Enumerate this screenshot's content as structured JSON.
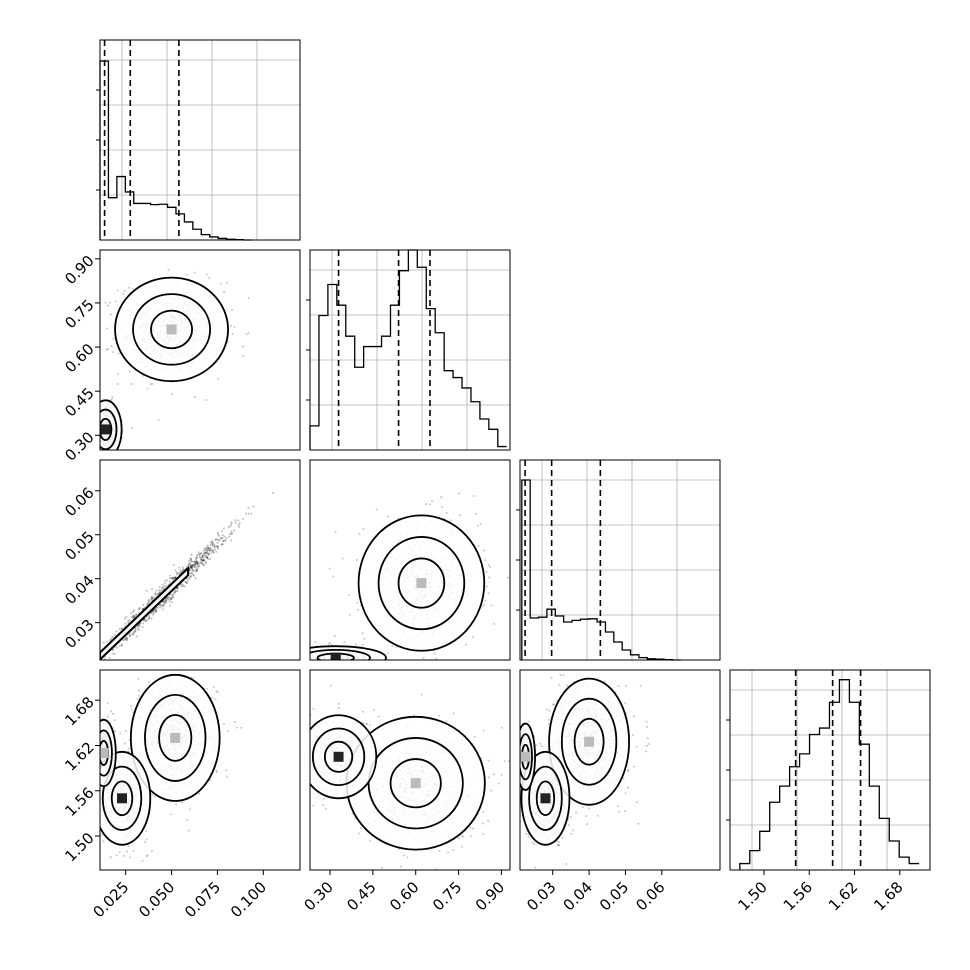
{
  "figure": {
    "background": "#ffffff",
    "grid_color": "#b0b0b0",
    "line_color": "#000000"
  },
  "chart_data": [
    {
      "type": "histogram",
      "panel": "diag-0",
      "x_range": [
        0.011,
        0.12
      ],
      "y_range": [
        0,
        0.052
      ],
      "grid": true,
      "x_bins": [
        0.011,
        0.0156,
        0.0202,
        0.0248,
        0.0294,
        0.034,
        0.0386,
        0.0432,
        0.0478,
        0.0524,
        0.057,
        0.0616,
        0.0662,
        0.0708,
        0.0754,
        0.08,
        0.0846,
        0.0892,
        0.0938
      ],
      "values": [
        0.0465,
        0.011,
        0.0165,
        0.0125,
        0.0095,
        0.0095,
        0.0092,
        0.0093,
        0.0085,
        0.0068,
        0.0047,
        0.0028,
        0.0014,
        0.0008,
        0.0004,
        0.0002,
        0.0001,
        0.0
      ],
      "quantiles": [
        0.0135,
        0.0275,
        0.054
      ]
    },
    {
      "type": "scatter_contour",
      "panel": "row1-col0",
      "x_range": [
        0.011,
        0.12
      ],
      "y_range": [
        0.25,
        0.93
      ],
      "y_ticks": [
        "0.30",
        "0.45",
        "0.60",
        "0.75",
        "0.90"
      ],
      "clusters": [
        {
          "x_center": 0.05,
          "y_center": 0.66,
          "x_sd": 0.014,
          "y_sd": 0.08
        },
        {
          "x_center": 0.014,
          "y_center": 0.32,
          "x_sd": 0.004,
          "y_sd": 0.045
        }
      ],
      "contour_x_centers": [
        0.047,
        0.046,
        0.045,
        0.03
      ],
      "contour_y_centers": [
        0.64,
        0.62,
        0.6,
        0.6
      ]
    },
    {
      "type": "histogram",
      "panel": "diag-1",
      "x_range": [
        0.23,
        0.93
      ],
      "y_range": [
        0,
        0.058
      ],
      "grid": true,
      "x_bins": [
        0.23,
        0.2613,
        0.2926,
        0.3239,
        0.3552,
        0.3865,
        0.4178,
        0.4491,
        0.4804,
        0.5117,
        0.543,
        0.5743,
        0.6056,
        0.6369,
        0.6682,
        0.6995,
        0.7308,
        0.7621,
        0.7934,
        0.8247,
        0.856,
        0.8873,
        0.9186
      ],
      "values": [
        0.007,
        0.039,
        0.048,
        0.042,
        0.033,
        0.024,
        0.03,
        0.03,
        0.033,
        0.042,
        0.052,
        0.058,
        0.053,
        0.041,
        0.034,
        0.023,
        0.021,
        0.018,
        0.014,
        0.009,
        0.006,
        0.001
      ],
      "quantiles": [
        0.33,
        0.54,
        0.65
      ]
    },
    {
      "type": "scatter_contour",
      "panel": "row2-col0",
      "x_range": [
        0.011,
        0.12
      ],
      "y_range": [
        0.0215,
        0.067
      ],
      "y_ticks": [
        "0.03",
        "0.04",
        "0.05",
        "0.06"
      ],
      "relation": "y = 0.4 x + 0.018"
    },
    {
      "type": "scatter_contour",
      "panel": "row2-col1",
      "x_range": [
        0.23,
        0.93
      ],
      "y_range": [
        0.0215,
        0.067
      ],
      "clusters": [
        {
          "x_center": 0.62,
          "y_center": 0.039,
          "x_sd": 0.1,
          "y_sd": 0.007
        },
        {
          "x_center": 0.32,
          "y_center": 0.022,
          "x_sd": 0.08,
          "y_sd": 0.0012
        }
      ]
    },
    {
      "type": "histogram",
      "panel": "diag-2",
      "x_range": [
        0.021,
        0.076
      ],
      "y_range": [
        0,
        0.05
      ],
      "grid": true,
      "x_bins": [
        0.0215,
        0.0238,
        0.0261,
        0.0284,
        0.0307,
        0.033,
        0.0353,
        0.0376,
        0.0399,
        0.0422,
        0.0445,
        0.0468,
        0.0491,
        0.0514,
        0.0537,
        0.056,
        0.0583,
        0.0606,
        0.0629,
        0.0652
      ],
      "values": [
        0.045,
        0.0105,
        0.0107,
        0.0127,
        0.011,
        0.0095,
        0.0099,
        0.0102,
        0.0103,
        0.0095,
        0.007,
        0.0045,
        0.0025,
        0.0013,
        0.0006,
        0.0003,
        0.0002,
        0.0001,
        0.0
      ],
      "quantiles": [
        0.0224,
        0.0297,
        0.0431
      ]
    },
    {
      "type": "scatter_contour",
      "panel": "row3-col0",
      "x_range": [
        0.011,
        0.12
      ],
      "y_range": [
        1.455,
        1.72
      ],
      "y_ticks": [
        "1.50",
        "1.56",
        "1.62",
        "1.68"
      ],
      "clusters": [
        {
          "x_center": 0.052,
          "y_center": 1.63,
          "x_sd": 0.011,
          "y_sd": 0.038
        },
        {
          "x_center": 0.023,
          "y_center": 1.55,
          "x_sd": 0.007,
          "y_sd": 0.028
        },
        {
          "x_center": 0.013,
          "y_center": 1.61,
          "x_sd": 0.003,
          "y_sd": 0.02
        }
      ],
      "x_ticks": [
        "0.025",
        "0.050",
        "0.075",
        "0.100"
      ]
    },
    {
      "type": "scatter_contour",
      "panel": "row3-col1",
      "x_range": [
        0.23,
        0.93
      ],
      "y_range": [
        1.455,
        1.72
      ],
      "clusters": [
        {
          "x_center": 0.6,
          "y_center": 1.57,
          "x_sd": 0.11,
          "y_sd": 0.04
        },
        {
          "x_center": 0.33,
          "y_center": 1.605,
          "x_sd": 0.06,
          "y_sd": 0.025
        }
      ],
      "x_ticks": [
        "0.30",
        "0.45",
        "0.60",
        "0.75",
        "0.90"
      ]
    },
    {
      "type": "scatter_contour",
      "panel": "row3-col2",
      "x_range": [
        0.021,
        0.076
      ],
      "y_range": [
        1.455,
        1.72
      ],
      "clusters": [
        {
          "x_center": 0.04,
          "y_center": 1.625,
          "x_sd": 0.005,
          "y_sd": 0.038
        },
        {
          "x_center": 0.028,
          "y_center": 1.55,
          "x_sd": 0.003,
          "y_sd": 0.028
        },
        {
          "x_center": 0.0225,
          "y_center": 1.605,
          "x_sd": 0.0012,
          "y_sd": 0.02
        }
      ],
      "x_ticks": [
        "0.03",
        "0.04",
        "0.05",
        "0.06"
      ]
    },
    {
      "type": "histogram",
      "panel": "diag-3",
      "x_range": [
        1.455,
        1.72
      ],
      "y_range": [
        0,
        0.062
      ],
      "grid": true,
      "x_bins": [
        1.468,
        1.4812,
        1.4944,
        1.5076,
        1.5208,
        1.534,
        1.5472,
        1.5604,
        1.5736,
        1.5868,
        1.6,
        1.6132,
        1.6264,
        1.6396,
        1.6528,
        1.666,
        1.6792,
        1.6924,
        1.7056
      ],
      "values": [
        0.002,
        0.006,
        0.012,
        0.021,
        0.026,
        0.032,
        0.036,
        0.042,
        0.044,
        0.052,
        0.059,
        0.052,
        0.039,
        0.026,
        0.016,
        0.009,
        0.004,
        0.002
      ],
      "quantiles": [
        1.542,
        1.591,
        1.628
      ],
      "x_ticks": [
        "1.50",
        "1.56",
        "1.62",
        "1.68"
      ]
    }
  ]
}
